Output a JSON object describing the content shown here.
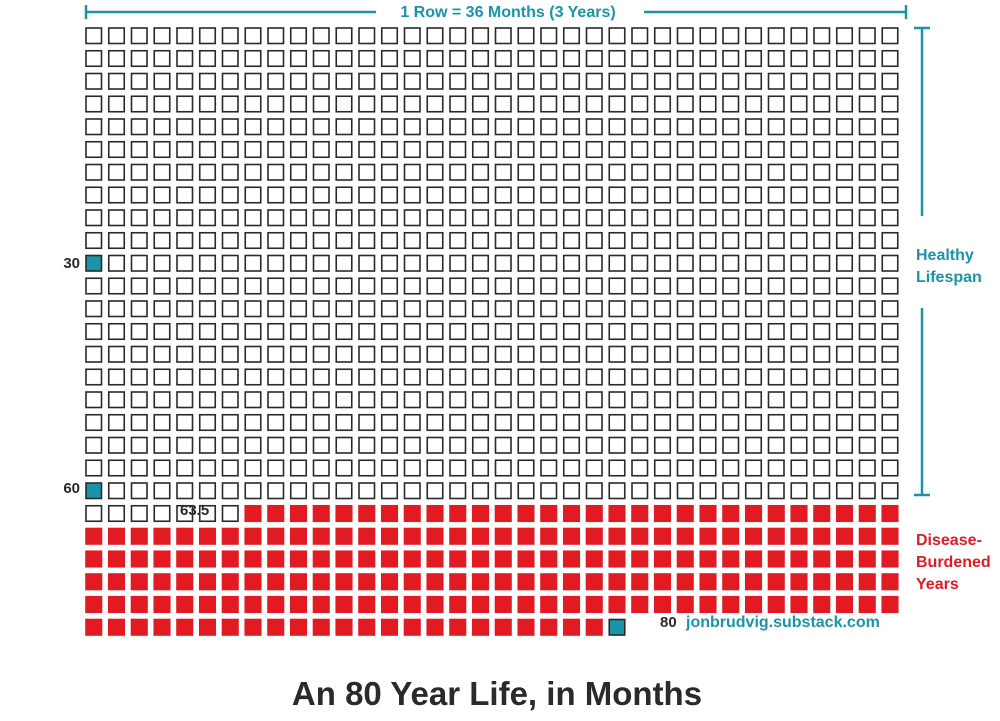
{
  "chart_data": {
    "type": "grid",
    "title": "An 80 Year Life, in Months",
    "row_label": "1 Row = 36 Months (3 Years)",
    "columns_per_row": 36,
    "rows": 27,
    "total_months": 960,
    "disease_start_month": 764,
    "markers": [
      {
        "label": "30",
        "month": 361
      },
      {
        "label": "60",
        "month": 721
      },
      {
        "label": "80",
        "month": 960
      }
    ],
    "annotation_63_5": {
      "label": "63.5",
      "month": 763
    },
    "brackets": [
      {
        "label_lines": [
          "Healthy",
          "Lifespan"
        ],
        "color": "#1a95a8"
      },
      {
        "label_lines": [
          "Disease-",
          "Burdened",
          "Years"
        ],
        "color": "#e21b22"
      }
    ],
    "footer_credit": "jonbrudvig.substack.com",
    "colors": {
      "outline": "#2a2a2a",
      "teal": "#1a95a8",
      "red": "#e21b22",
      "text": "#2a2a2a"
    }
  }
}
